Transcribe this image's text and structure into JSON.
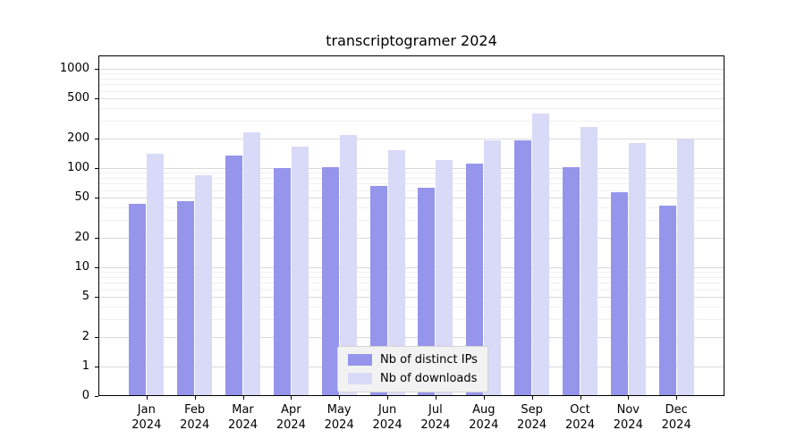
{
  "chart_data": {
    "type": "bar",
    "title": "transcriptogramer 2024",
    "categories": [
      "Jan",
      "Feb",
      "Mar",
      "Apr",
      "May",
      "Jun",
      "Jul",
      "Aug",
      "Sep",
      "Oct",
      "Nov",
      "Dec"
    ],
    "year": "2024",
    "series": [
      {
        "name": "Nb of distinct IPs",
        "color": "#9595ec",
        "values": [
          44,
          46,
          135,
          100,
          103,
          66,
          63,
          110,
          190,
          102,
          57,
          42
        ]
      },
      {
        "name": "Nb of downloads",
        "color": "#d9d9f8",
        "values": [
          140,
          85,
          230,
          165,
          215,
          152,
          120,
          190,
          355,
          262,
          180,
          195
        ]
      }
    ],
    "yscale": "symlog",
    "yticks": [
      0,
      1,
      2,
      5,
      10,
      20,
      50,
      100,
      200,
      500,
      1000
    ],
    "minor_yticks": [
      3,
      4,
      6,
      7,
      8,
      9,
      30,
      40,
      60,
      70,
      80,
      90,
      300,
      400,
      600,
      700,
      800,
      900
    ],
    "ylim": [
      0,
      1400
    ],
    "grid": true,
    "legend_position": "lower center"
  },
  "colors": {
    "background": "#ffffff",
    "axis": "#000000",
    "grid_major": "#d9d9d9",
    "grid_minor": "#efefef",
    "legend_bg": "#f2f2f2",
    "legend_border": "#d5d5d5",
    "text": "#000000"
  }
}
